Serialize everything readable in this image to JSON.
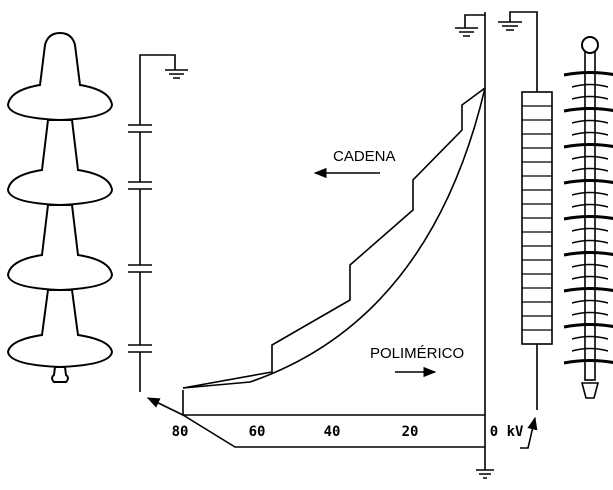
{
  "labels": {
    "chain": "CADENA",
    "polymeric": "POLIMÉRICO"
  },
  "axis": {
    "ticks": [
      "80",
      "60",
      "40",
      "20",
      "0"
    ],
    "unit": "kV"
  }
}
